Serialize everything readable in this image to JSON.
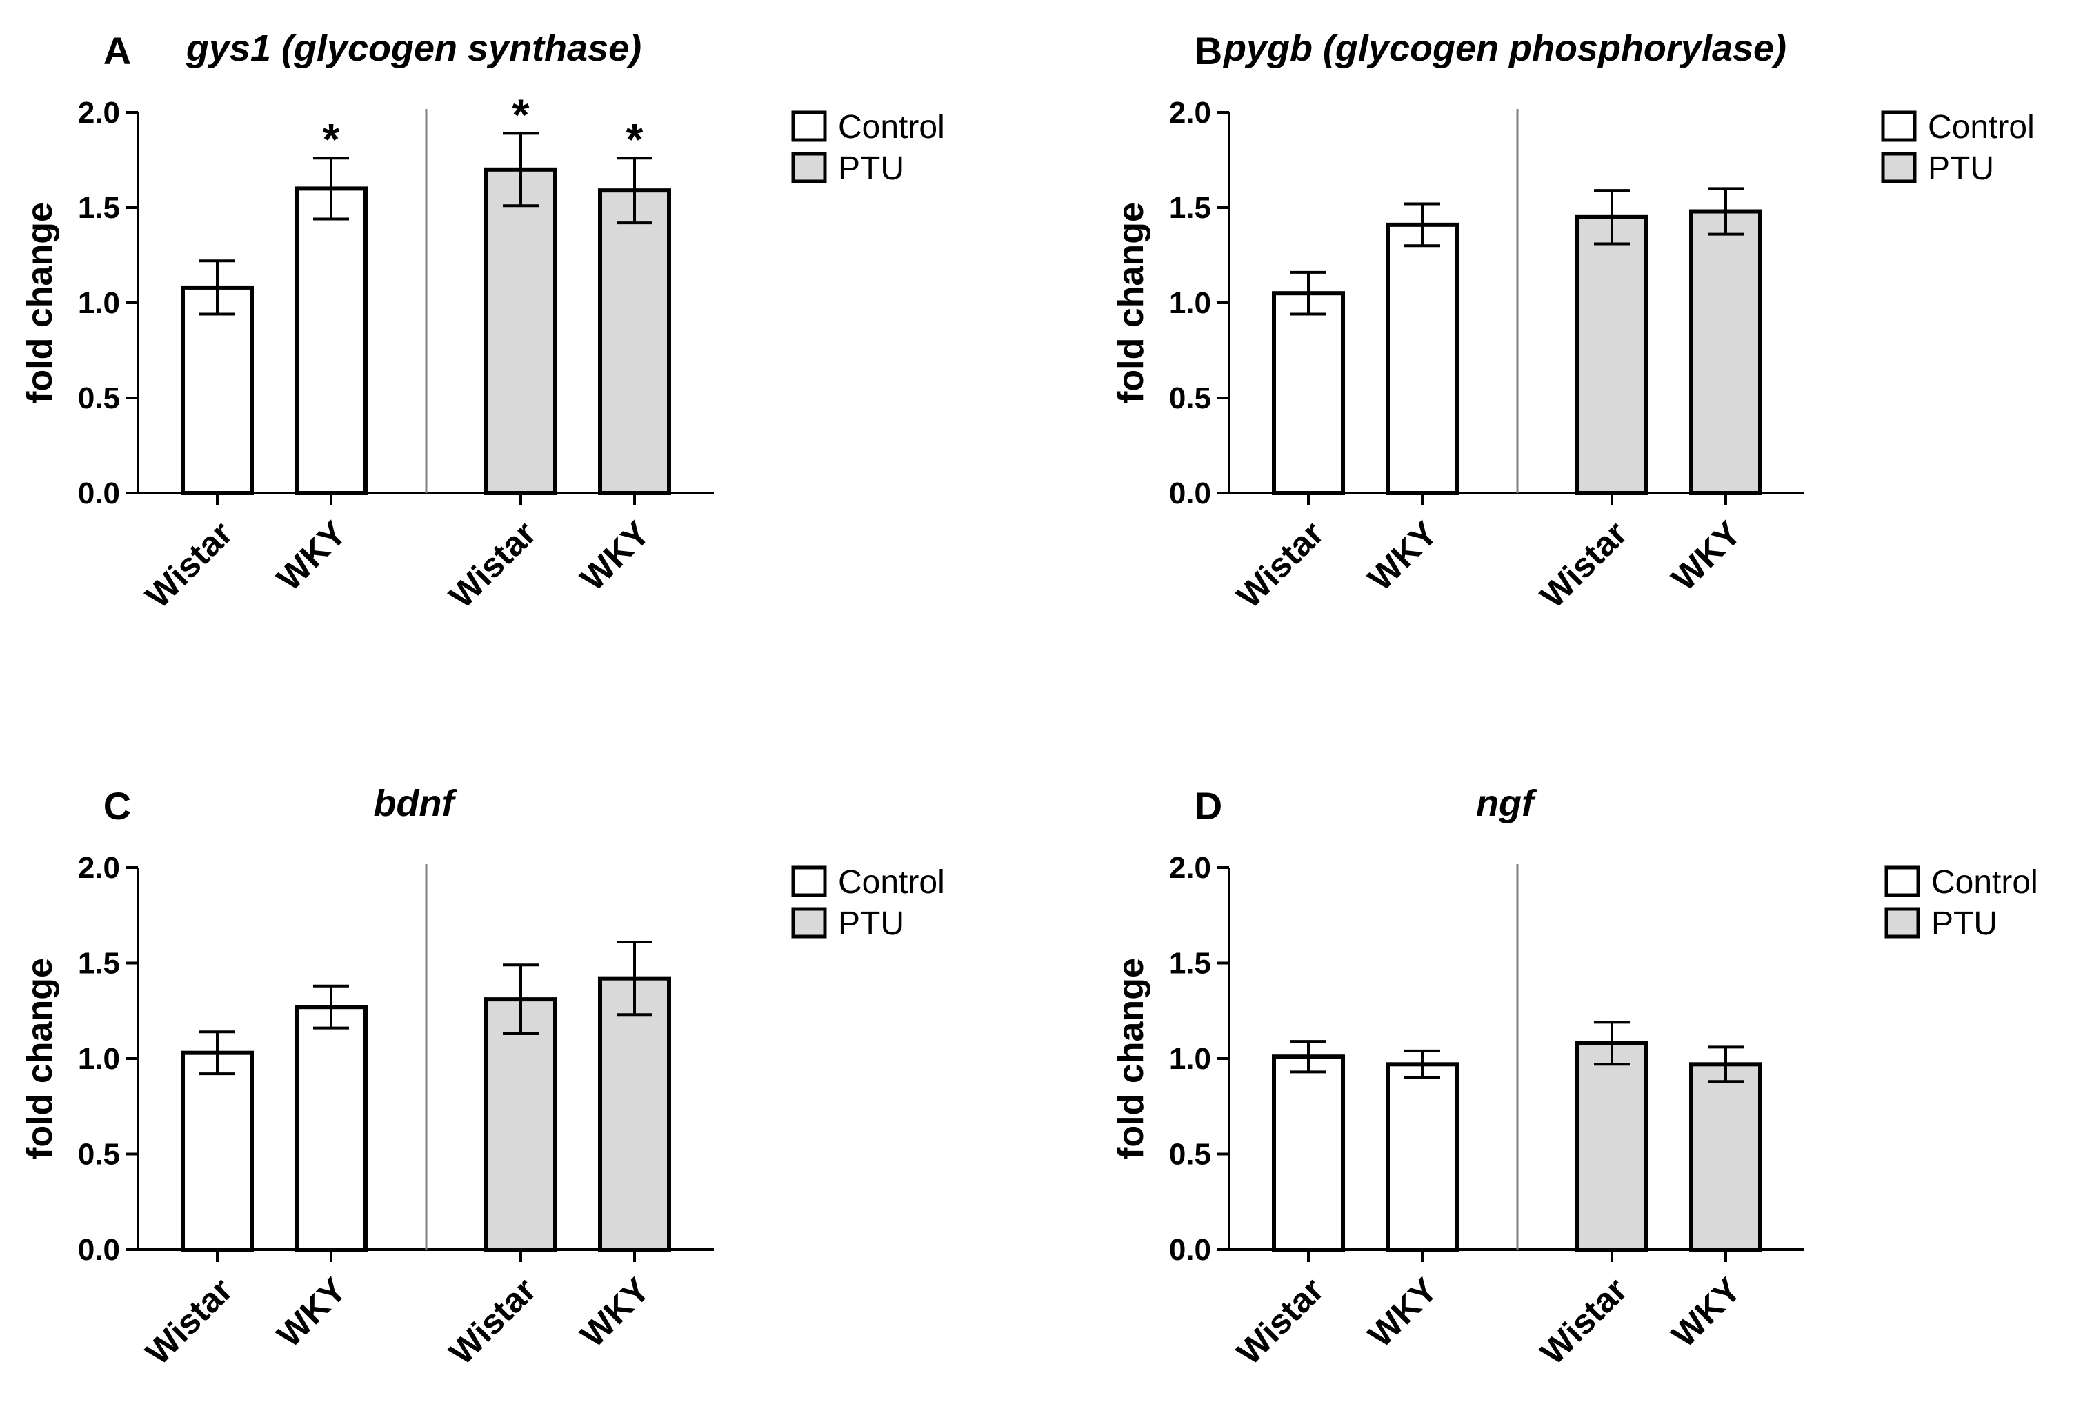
{
  "legend": {
    "control_label": "Control",
    "ptu_label": "PTU",
    "control_color": "#ffffff",
    "ptu_color": "#d9d9d9"
  },
  "chart_data": [
    {
      "panel": "A",
      "type": "bar",
      "title": "gys1 (glycogen synthase)",
      "ylabel": "fold change",
      "ylim": [
        0,
        2.0
      ],
      "yticks": [
        "0.0",
        "0.5",
        "1.0",
        "1.5",
        "2.0"
      ],
      "categories": [
        "Wistar",
        "WKY",
        "Wistar",
        "WKY"
      ],
      "groups": [
        "Control",
        "Control",
        "PTU",
        "PTU"
      ],
      "values": [
        1.08,
        1.6,
        1.7,
        1.59
      ],
      "errors": [
        0.14,
        0.16,
        0.19,
        0.17
      ],
      "significance": [
        "",
        "*",
        "*",
        "*"
      ]
    },
    {
      "panel": "B",
      "type": "bar",
      "title": "pygb (glycogen phosphorylase)",
      "ylabel": "fold change",
      "ylim": [
        0,
        2.0
      ],
      "yticks": [
        "0.0",
        "0.5",
        "1.0",
        "1.5",
        "2.0"
      ],
      "categories": [
        "Wistar",
        "WKY",
        "Wistar",
        "WKY"
      ],
      "groups": [
        "Control",
        "Control",
        "PTU",
        "PTU"
      ],
      "values": [
        1.05,
        1.41,
        1.45,
        1.48
      ],
      "errors": [
        0.11,
        0.11,
        0.14,
        0.12
      ],
      "significance": [
        "",
        "",
        "",
        ""
      ]
    },
    {
      "panel": "C",
      "type": "bar",
      "title": "bdnf",
      "ylabel": "fold change",
      "ylim": [
        0,
        2.0
      ],
      "yticks": [
        "0.0",
        "0.5",
        "1.0",
        "1.5",
        "2.0"
      ],
      "categories": [
        "Wistar",
        "WKY",
        "Wistar",
        "WKY"
      ],
      "groups": [
        "Control",
        "Control",
        "PTU",
        "PTU"
      ],
      "values": [
        1.03,
        1.27,
        1.31,
        1.42
      ],
      "errors": [
        0.11,
        0.11,
        0.18,
        0.19
      ],
      "significance": [
        "",
        "",
        "",
        ""
      ]
    },
    {
      "panel": "D",
      "type": "bar",
      "title": "ngf",
      "ylabel": "fold change",
      "ylim": [
        0,
        2.0
      ],
      "yticks": [
        "0.0",
        "0.5",
        "1.0",
        "1.5",
        "2.0"
      ],
      "categories": [
        "Wistar",
        "WKY",
        "Wistar",
        "WKY"
      ],
      "groups": [
        "Control",
        "Control",
        "PTU",
        "PTU"
      ],
      "values": [
        1.01,
        0.97,
        1.08,
        0.97
      ],
      "errors": [
        0.08,
        0.07,
        0.11,
        0.09
      ],
      "significance": [
        "",
        "",
        "",
        ""
      ]
    }
  ]
}
